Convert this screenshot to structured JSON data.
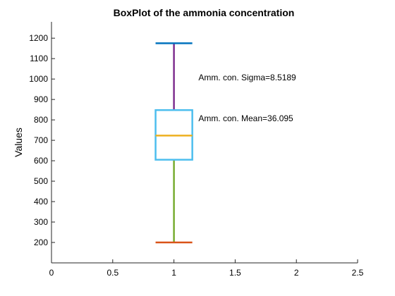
{
  "chart_data": {
    "type": "box",
    "title": "BoxPlot of the ammonia concentration",
    "xlabel": "",
    "ylabel": "Values",
    "xlim": [
      0,
      2.5
    ],
    "ylim": [
      100,
      1280
    ],
    "x_ticks": [
      0,
      0.5,
      1,
      1.5,
      2,
      2.5
    ],
    "x_tick_labels": [
      "0",
      "0.5",
      "1",
      "1.5",
      "2",
      "2.5"
    ],
    "y_ticks": [
      200,
      300,
      400,
      500,
      600,
      700,
      800,
      900,
      1000,
      1100,
      1200
    ],
    "y_tick_labels": [
      "200",
      "300",
      "400",
      "500",
      "600",
      "700",
      "800",
      "900",
      "1000",
      "1100",
      "1200"
    ],
    "grid": false,
    "box": {
      "x": 1,
      "half_width": 0.15,
      "whisker_cap_half_width": 0.15,
      "min": 200,
      "q1": 605,
      "median": 723,
      "q3": 848,
      "max": 1175
    },
    "annotations": [
      {
        "text": "Amm. con. Sigma=8.5189",
        "x": 1.2,
        "y": 993
      },
      {
        "text": "Amm. con. Mean=36.095",
        "x": 1.2,
        "y": 793
      }
    ],
    "colors": {
      "max_cap": "#0072BD",
      "min_cap": "#D95319",
      "median": "#EDB120",
      "upper_whisker": "#7E2F8E",
      "lower_whisker": "#77AC30",
      "box": "#4DBEEE",
      "axis": "#262626"
    }
  }
}
